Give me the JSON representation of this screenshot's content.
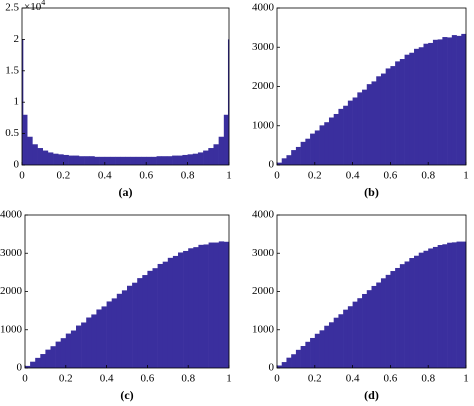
{
  "chart_data": [
    {
      "type": "histogram",
      "xlabel": "(a)",
      "color": "#3a2f9e",
      "y_multiplier": {
        "base": "×10",
        "exponent": "4"
      },
      "bins": [
        0,
        0.005,
        0.025,
        0.05,
        0.075,
        0.1,
        0.125,
        0.15,
        0.175,
        0.2,
        0.225,
        0.25,
        0.275,
        0.3,
        0.325,
        0.35,
        0.375,
        0.4,
        0.425,
        0.45,
        0.475,
        0.5,
        0.525,
        0.55,
        0.575,
        0.6,
        0.625,
        0.65,
        0.675,
        0.7,
        0.725,
        0.75,
        0.775,
        0.8,
        0.825,
        0.85,
        0.875,
        0.9,
        0.925,
        0.95,
        0.975,
        0.995,
        1
      ],
      "values": [
        2.0,
        0.8,
        0.45,
        0.33,
        0.27,
        0.23,
        0.2,
        0.18,
        0.17,
        0.16,
        0.15,
        0.15,
        0.14,
        0.14,
        0.14,
        0.13,
        0.13,
        0.13,
        0.13,
        0.13,
        0.13,
        0.13,
        0.13,
        0.13,
        0.13,
        0.13,
        0.13,
        0.14,
        0.14,
        0.14,
        0.15,
        0.15,
        0.16,
        0.17,
        0.18,
        0.2,
        0.23,
        0.27,
        0.33,
        0.45,
        0.8,
        2.0
      ],
      "xlim": [
        0,
        1
      ],
      "ylim": [
        0,
        2.5
      ],
      "xticks": [
        0,
        0.2,
        0.4,
        0.6,
        0.8,
        1
      ],
      "yticks": [
        0,
        0.5,
        1,
        1.5,
        2,
        2.5
      ]
    },
    {
      "type": "histogram",
      "xlabel": "(b)",
      "color": "#3a2f9e",
      "bins": [
        0,
        0.025,
        0.05,
        0.075,
        0.1,
        0.125,
        0.15,
        0.175,
        0.2,
        0.225,
        0.25,
        0.275,
        0.3,
        0.325,
        0.35,
        0.375,
        0.4,
        0.425,
        0.45,
        0.475,
        0.5,
        0.525,
        0.55,
        0.575,
        0.6,
        0.625,
        0.65,
        0.675,
        0.7,
        0.725,
        0.75,
        0.775,
        0.8,
        0.825,
        0.85,
        0.875,
        0.9,
        0.925,
        0.95,
        0.975,
        1
      ],
      "values": [
        60,
        170,
        250,
        380,
        460,
        590,
        670,
        800,
        880,
        1010,
        1090,
        1210,
        1300,
        1430,
        1510,
        1640,
        1720,
        1850,
        1920,
        2060,
        2130,
        2260,
        2330,
        2460,
        2520,
        2640,
        2700,
        2810,
        2860,
        2960,
        3000,
        3090,
        3110,
        3190,
        3200,
        3260,
        3250,
        3310,
        3290,
        3340
      ],
      "xlim": [
        0,
        1
      ],
      "ylim": [
        0,
        4000
      ],
      "xticks": [
        0,
        0.2,
        0.4,
        0.6,
        0.8,
        1
      ],
      "yticks": [
        0,
        1000,
        2000,
        3000,
        4000
      ]
    },
    {
      "type": "histogram",
      "xlabel": "(c)",
      "color": "#3a2f9e",
      "bins": [
        0,
        0.025,
        0.05,
        0.075,
        0.1,
        0.125,
        0.15,
        0.175,
        0.2,
        0.225,
        0.25,
        0.275,
        0.3,
        0.325,
        0.35,
        0.375,
        0.4,
        0.425,
        0.45,
        0.475,
        0.5,
        0.525,
        0.55,
        0.575,
        0.6,
        0.625,
        0.65,
        0.675,
        0.7,
        0.725,
        0.75,
        0.775,
        0.8,
        0.825,
        0.85,
        0.875,
        0.9,
        0.925,
        0.95,
        0.975,
        1
      ],
      "values": [
        55,
        165,
        265,
        365,
        480,
        570,
        690,
        780,
        900,
        980,
        1110,
        1190,
        1320,
        1400,
        1530,
        1610,
        1740,
        1820,
        1940,
        2030,
        2150,
        2230,
        2350,
        2430,
        2540,
        2610,
        2720,
        2780,
        2880,
        2930,
        3020,
        3060,
        3130,
        3160,
        3220,
        3230,
        3280,
        3280,
        3310,
        3300
      ],
      "xlim": [
        0,
        1
      ],
      "ylim": [
        0,
        4000
      ],
      "xticks": [
        0,
        0.2,
        0.4,
        0.6,
        0.8,
        1
      ],
      "yticks": [
        0,
        1000,
        2000,
        3000,
        4000
      ]
    },
    {
      "type": "histogram",
      "xlabel": "(d)",
      "color": "#3a2f9e",
      "bins": [
        0,
        0.025,
        0.05,
        0.075,
        0.1,
        0.125,
        0.15,
        0.175,
        0.2,
        0.225,
        0.25,
        0.275,
        0.3,
        0.325,
        0.35,
        0.375,
        0.4,
        0.425,
        0.45,
        0.475,
        0.5,
        0.525,
        0.55,
        0.575,
        0.6,
        0.625,
        0.65,
        0.675,
        0.7,
        0.725,
        0.75,
        0.775,
        0.8,
        0.825,
        0.85,
        0.875,
        0.9,
        0.925,
        0.95,
        0.975,
        1
      ],
      "values": [
        65,
        155,
        270,
        360,
        475,
        575,
        685,
        785,
        895,
        985,
        1105,
        1195,
        1315,
        1405,
        1525,
        1615,
        1735,
        1825,
        1935,
        2035,
        2145,
        2235,
        2345,
        2435,
        2535,
        2615,
        2715,
        2785,
        2875,
        2935,
        3015,
        3065,
        3125,
        3165,
        3215,
        3235,
        3275,
        3285,
        3305,
        3305
      ],
      "xlim": [
        0,
        1
      ],
      "ylim": [
        0,
        4000
      ],
      "xticks": [
        0,
        0.2,
        0.4,
        0.6,
        0.8,
        1
      ],
      "yticks": [
        0,
        1000,
        2000,
        3000,
        4000
      ]
    }
  ]
}
